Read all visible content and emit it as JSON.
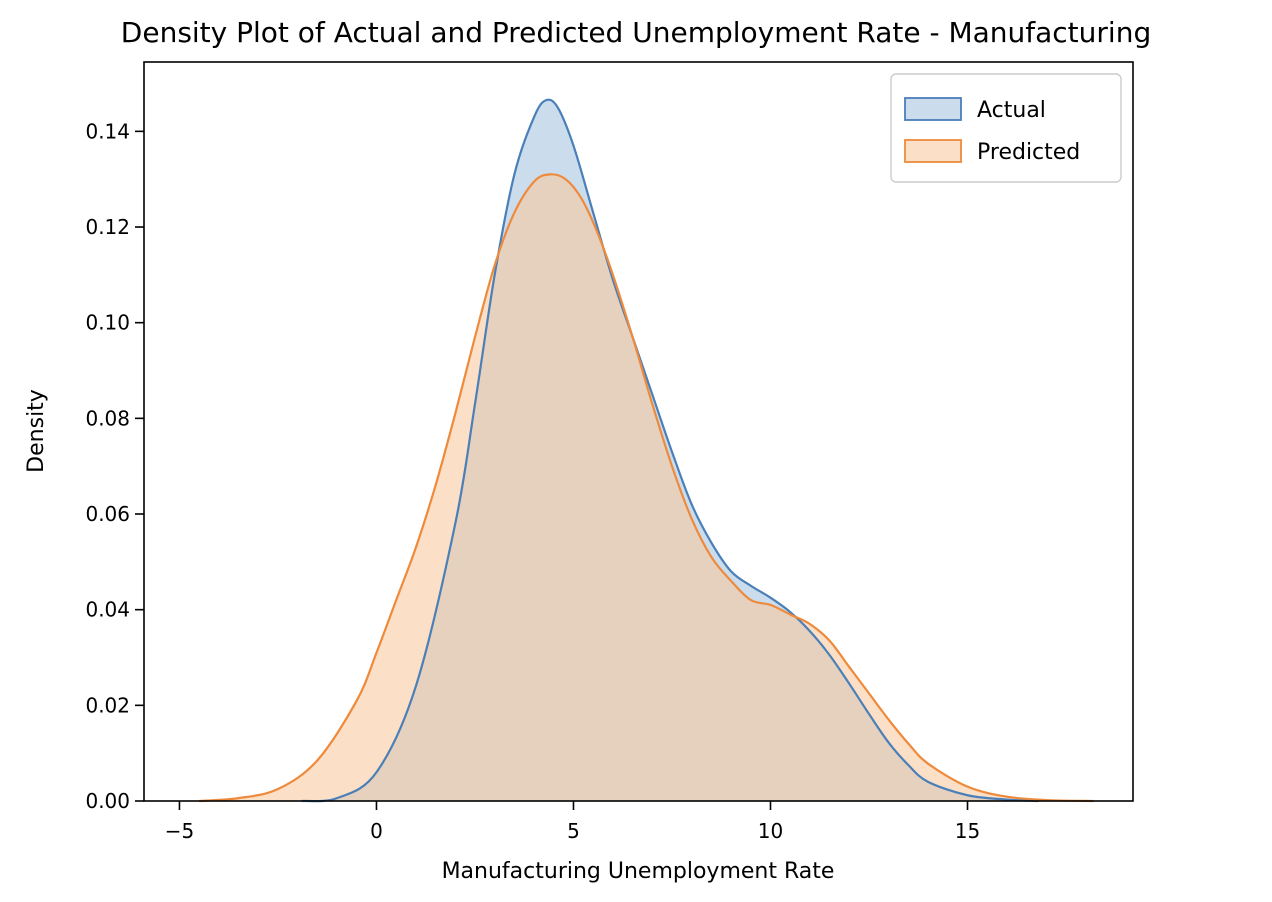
{
  "chart_data": {
    "type": "area",
    "title": "Density Plot of Actual and Predicted Unemployment Rate - Manufacturing",
    "xlabel": "Manufacturing Unemployment Rate",
    "ylabel": "Density",
    "xlim": [
      -5.9,
      19.2
    ],
    "ylim": [
      0,
      0.1545
    ],
    "x_ticks": [
      -5,
      0,
      5,
      10,
      15
    ],
    "x_tick_labels": [
      "−5",
      "0",
      "5",
      "10",
      "15"
    ],
    "y_ticks": [
      0.0,
      0.02,
      0.04,
      0.06,
      0.08,
      0.1,
      0.12,
      0.14
    ],
    "y_tick_labels": [
      "0.00",
      "0.02",
      "0.04",
      "0.06",
      "0.08",
      "0.10",
      "0.12",
      "0.14"
    ],
    "grid": false,
    "legend_position": "top-right",
    "series": [
      {
        "name": "Actual",
        "stroke": "#4a7fb8",
        "fill": "#a9c4e0",
        "fill_opacity": 0.6,
        "x": [
          -1.9,
          -1.0,
          0.0,
          1.0,
          2.0,
          2.5,
          3.0,
          3.5,
          4.0,
          4.3,
          4.6,
          5.0,
          5.5,
          6.0,
          6.5,
          7.0,
          7.5,
          8.0,
          8.5,
          9.0,
          9.5,
          10.0,
          10.5,
          11.0,
          11.5,
          12.0,
          12.5,
          13.0,
          13.5,
          14.0,
          15.0,
          16.0,
          16.8
        ],
        "y": [
          0.0,
          0.0006,
          0.006,
          0.024,
          0.058,
          0.083,
          0.11,
          0.131,
          0.143,
          0.1465,
          0.145,
          0.137,
          0.123,
          0.109,
          0.097,
          0.085,
          0.073,
          0.062,
          0.054,
          0.048,
          0.045,
          0.0425,
          0.0395,
          0.0355,
          0.0305,
          0.0245,
          0.0182,
          0.0122,
          0.0075,
          0.004,
          0.0012,
          0.0003,
          0.0
        ]
      },
      {
        "name": "Predicted",
        "stroke": "#ee8a3c",
        "fill": "#f8c9a0",
        "fill_opacity": 0.6,
        "x": [
          -4.5,
          -3.5,
          -2.5,
          -1.5,
          -0.5,
          0.0,
          0.5,
          1.0,
          1.5,
          2.0,
          2.5,
          3.0,
          3.5,
          4.0,
          4.4,
          4.8,
          5.2,
          5.6,
          6.0,
          6.5,
          7.0,
          7.5,
          8.0,
          8.5,
          9.0,
          9.5,
          10.0,
          10.5,
          11.0,
          11.5,
          12.0,
          12.5,
          13.0,
          13.5,
          14.0,
          15.0,
          16.0,
          17.0,
          18.2
        ],
        "y": [
          0.0,
          0.0006,
          0.0025,
          0.0085,
          0.021,
          0.031,
          0.042,
          0.053,
          0.066,
          0.081,
          0.097,
          0.112,
          0.123,
          0.1295,
          0.131,
          0.13,
          0.126,
          0.119,
          0.11,
          0.097,
          0.083,
          0.07,
          0.059,
          0.051,
          0.046,
          0.042,
          0.041,
          0.039,
          0.037,
          0.0335,
          0.028,
          0.0225,
          0.017,
          0.012,
          0.0078,
          0.003,
          0.0009,
          0.0002,
          0.0
        ]
      }
    ]
  }
}
